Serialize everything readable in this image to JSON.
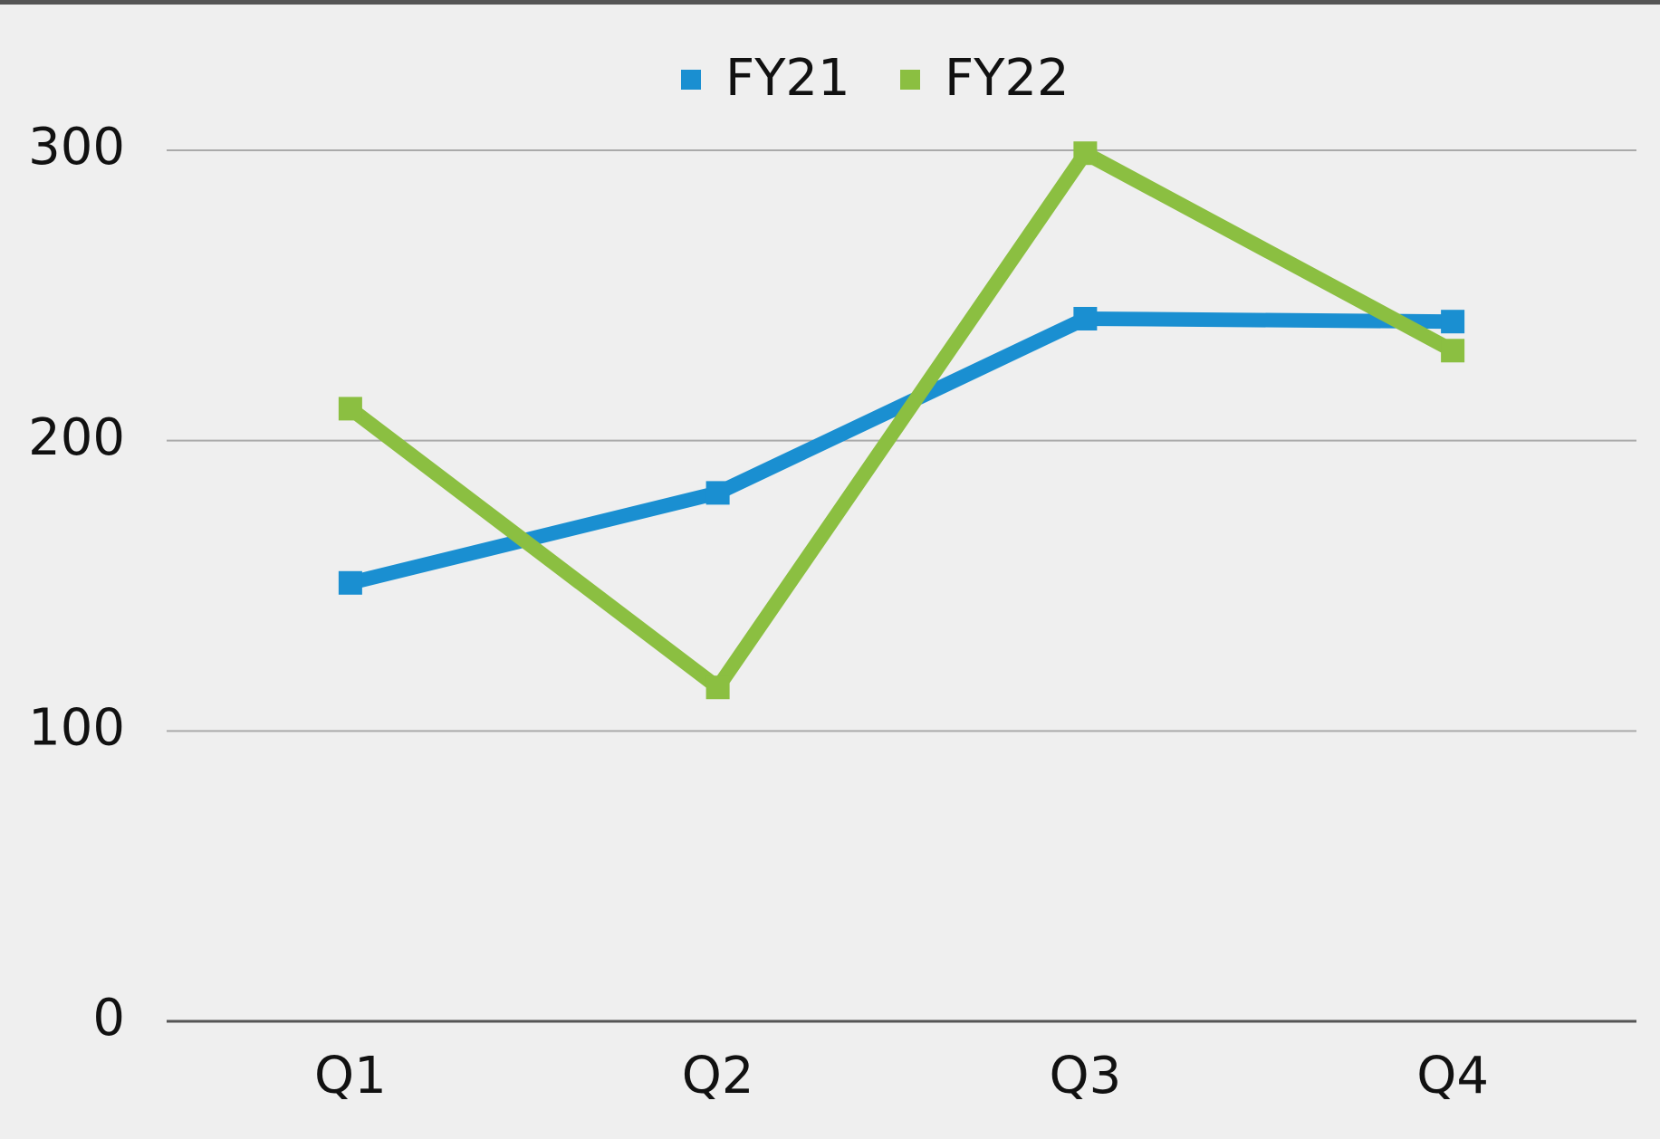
{
  "chart_data": {
    "type": "line",
    "categories": [
      "Q1",
      "Q2",
      "Q3",
      "Q4"
    ],
    "series": [
      {
        "name": "FY21",
        "color": "#1a8fd1",
        "values": [
          151,
          182,
          242,
          241
        ]
      },
      {
        "name": "FY22",
        "color": "#8bbf41",
        "values": [
          211,
          115,
          299,
          231
        ]
      }
    ],
    "ylim": [
      0,
      300
    ],
    "yticks": [
      0,
      100,
      200,
      300
    ],
    "grid": true,
    "legend": "top"
  }
}
